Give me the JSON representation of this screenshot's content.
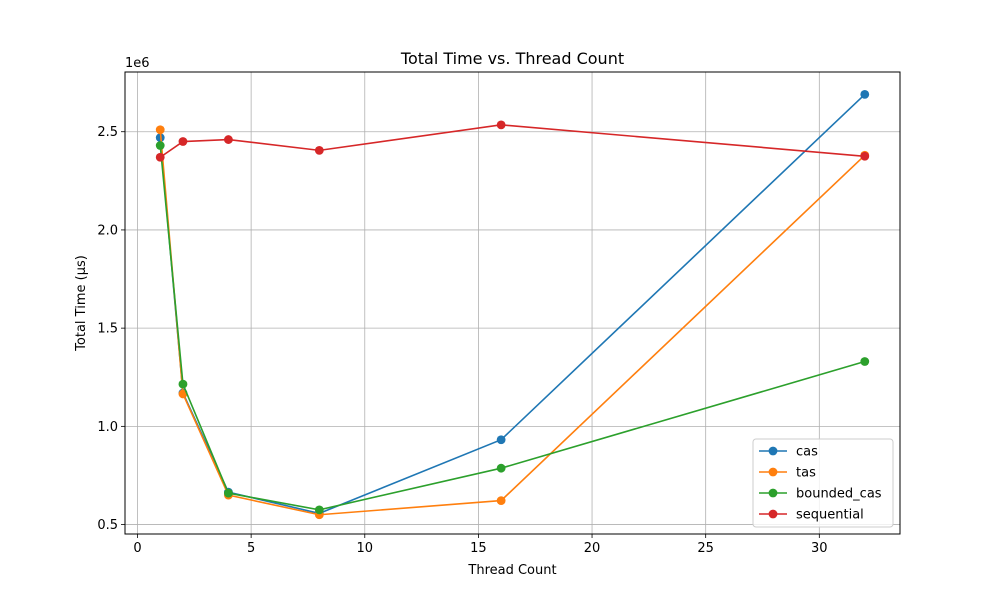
{
  "chart_data": {
    "type": "line",
    "title": "Total Time vs. Thread Count",
    "xlabel": "Thread Count",
    "ylabel": "Total Time (µs)",
    "y_offset_label": "1e6",
    "xlim": [
      -0.55,
      33.55
    ],
    "ylim": [
      452000,
      2804000
    ],
    "x_ticks": [
      0,
      5,
      10,
      15,
      20,
      25,
      30
    ],
    "y_ticks": [
      500000,
      1000000,
      1500000,
      2000000,
      2500000
    ],
    "y_tick_labels": [
      "0.5",
      "1.0",
      "1.5",
      "2.0",
      "2.5"
    ],
    "grid": true,
    "legend_position": "lower-right",
    "x": [
      1,
      2,
      4,
      8,
      16,
      32
    ],
    "series": [
      {
        "name": "cas",
        "color": "#1f77b4",
        "values": [
          2470000,
          1170000,
          665000,
          557000,
          932000,
          2690000
        ]
      },
      {
        "name": "tas",
        "color": "#ff7f0e",
        "values": [
          2510000,
          1165000,
          650000,
          550000,
          622000,
          2380000
        ]
      },
      {
        "name": "bounded_cas",
        "color": "#2ca02c",
        "values": [
          2430000,
          1215000,
          660000,
          575000,
          787000,
          1330000
        ]
      },
      {
        "name": "sequential",
        "color": "#d62728",
        "values": [
          2370000,
          2450000,
          2460000,
          2405000,
          2535000,
          2375000
        ]
      }
    ]
  }
}
